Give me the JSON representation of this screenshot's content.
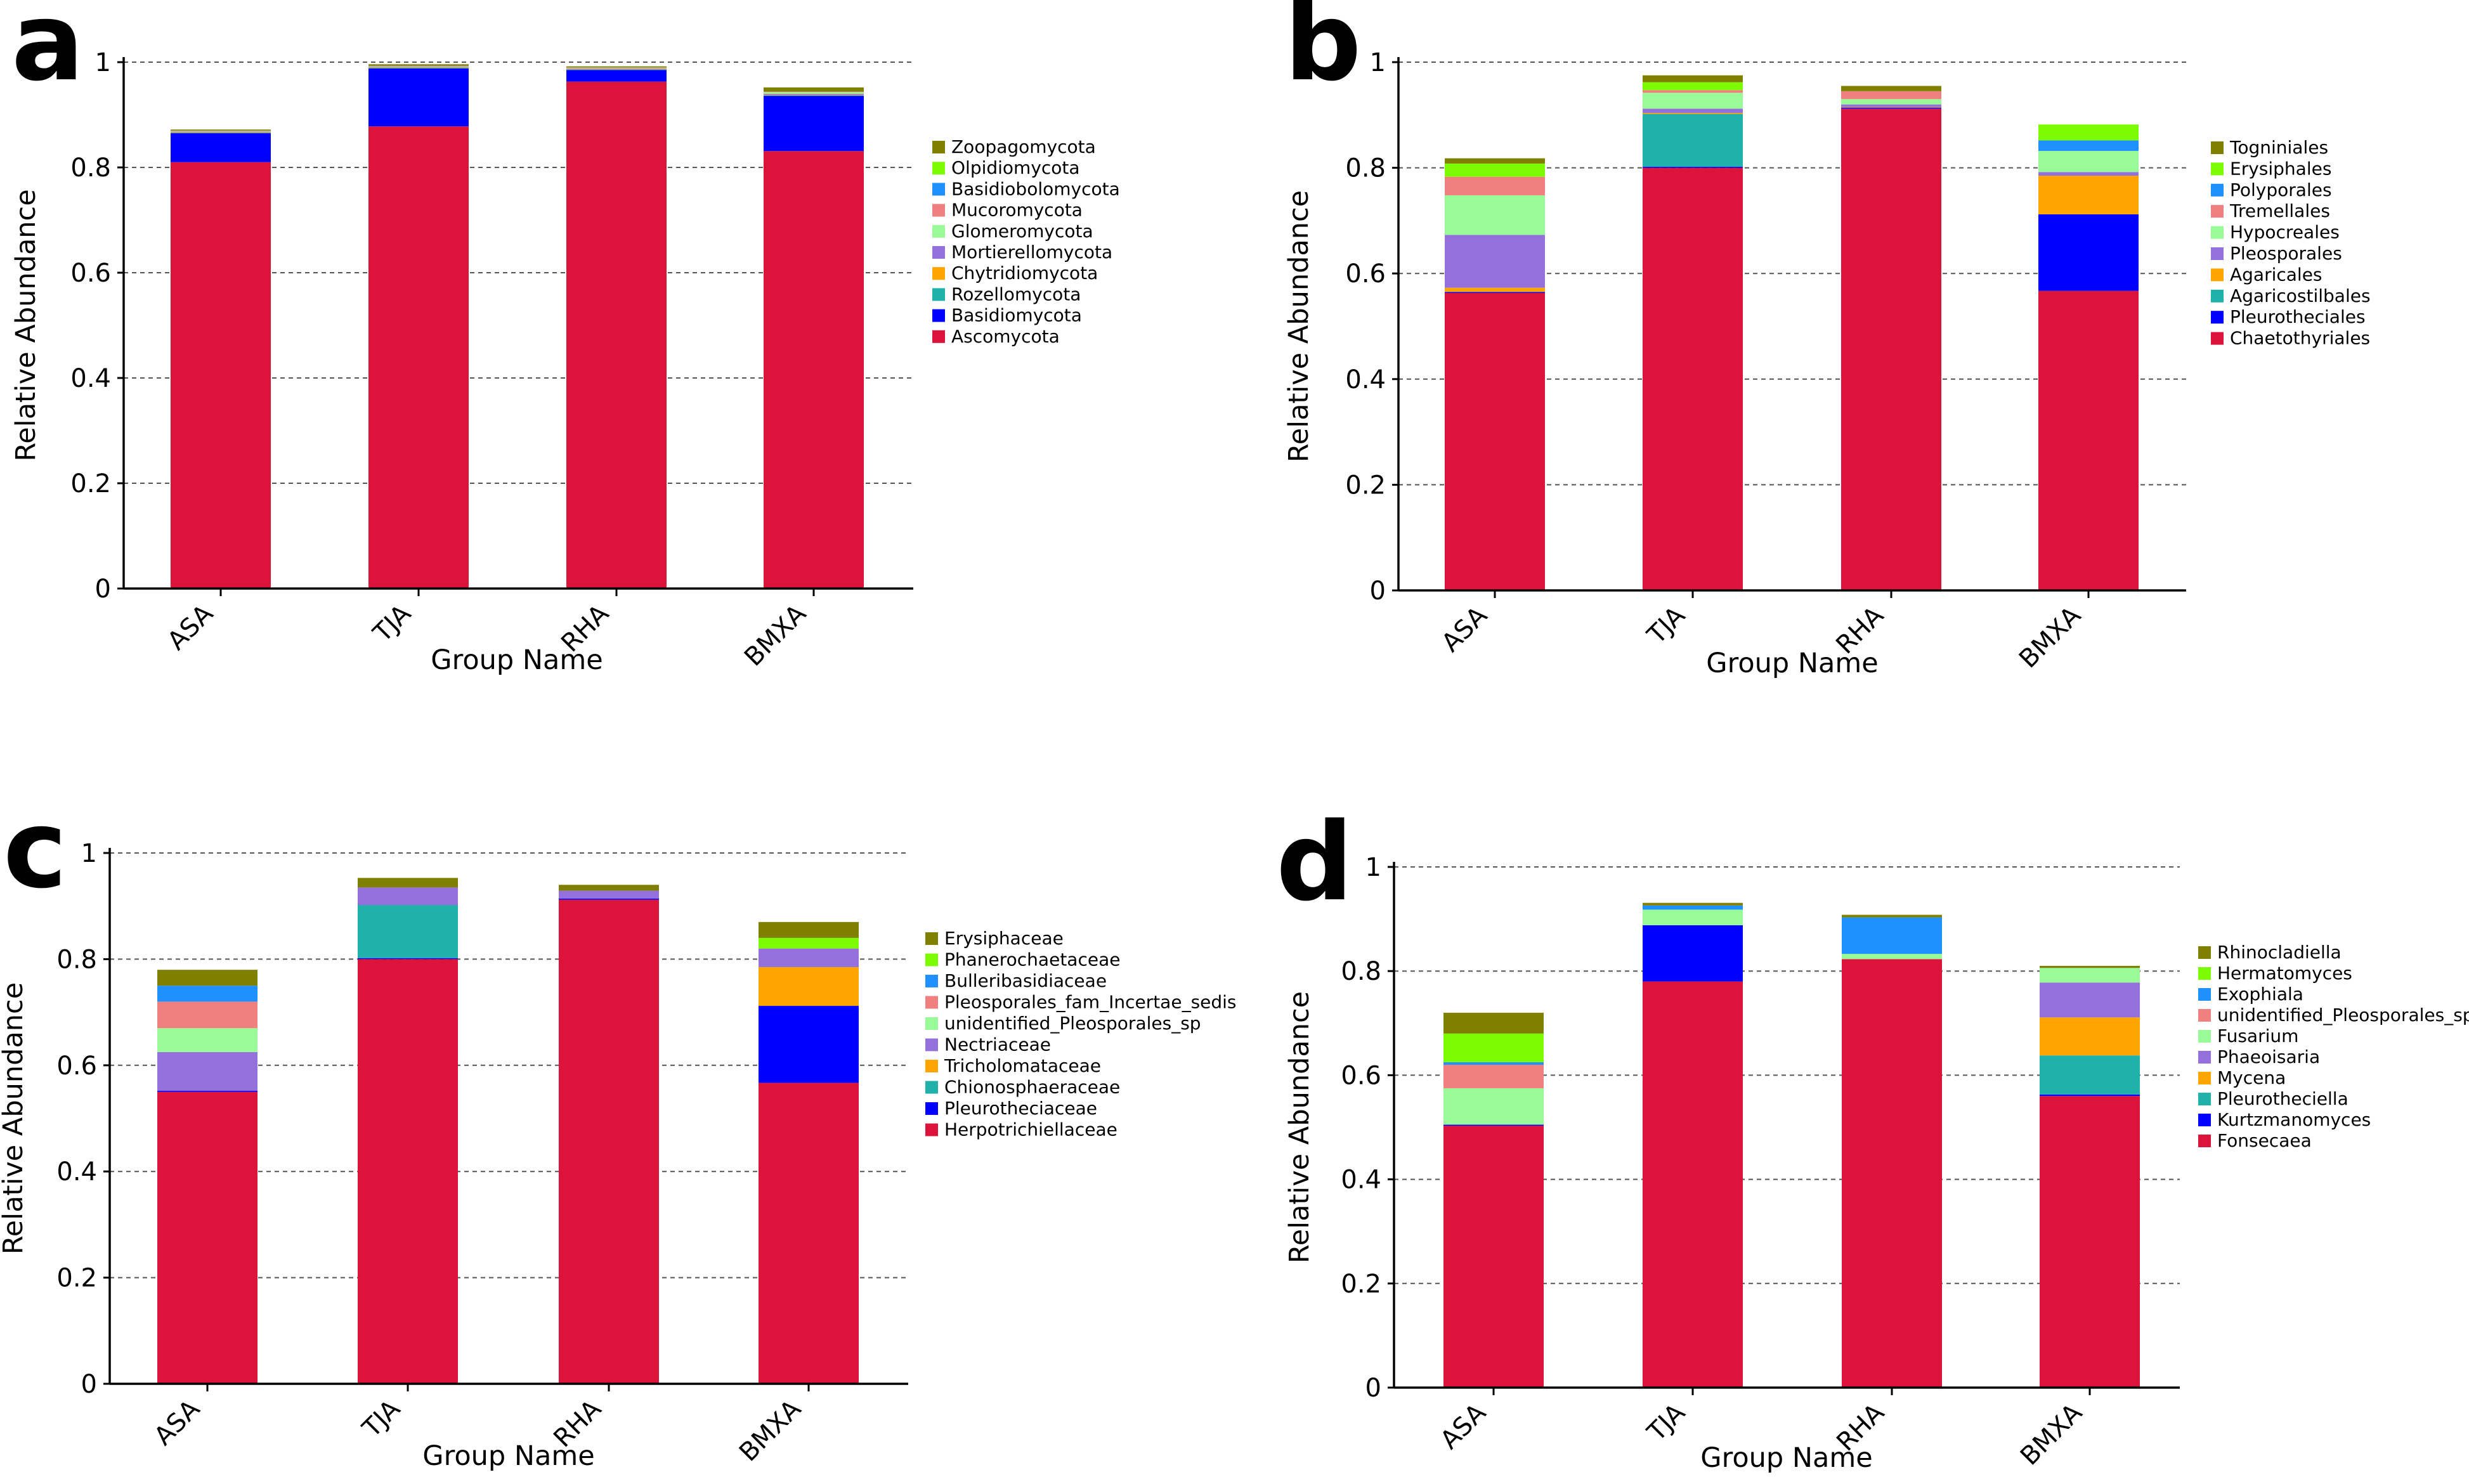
{
  "chart_data": [
    {
      "panel_label": "a",
      "type": "bar",
      "stacked": true,
      "xlabel": "Group Name",
      "ylabel": "Relative Abundance",
      "ylim": [
        0,
        1
      ],
      "yticks": [
        "0",
        "0.2",
        "0.4",
        "0.6",
        "0.8",
        "1"
      ],
      "grid": "y-dashed",
      "categories": [
        "ASA",
        "TJA",
        "RHA",
        "BMXA"
      ],
      "series": [
        {
          "name": "Ascomycota",
          "color": "#DC143C",
          "values": [
            0.81,
            0.878,
            0.963,
            0.831
          ]
        },
        {
          "name": "Basidiomycota",
          "color": "#0000FF",
          "values": [
            0.055,
            0.11,
            0.022,
            0.105
          ]
        },
        {
          "name": "Rozellomycota",
          "color": "#20B2AA",
          "values": [
            0.001,
            0.001,
            0.001,
            0.001
          ]
        },
        {
          "name": "Chytridiomycota",
          "color": "#FFA500",
          "values": [
            0.001,
            0.001,
            0.001,
            0.001
          ]
        },
        {
          "name": "Mortierellomycota",
          "color": "#9370DB",
          "values": [
            0.001,
            0.001,
            0.001,
            0.002
          ]
        },
        {
          "name": "Glomeromycota",
          "color": "#98FB98",
          "values": [
            0.001,
            0.001,
            0.001,
            0.003
          ]
        },
        {
          "name": "Mucoromycota",
          "color": "#F08080",
          "values": [
            0.001,
            0.001,
            0.001,
            0.001
          ]
        },
        {
          "name": "Basidiobolomycota",
          "color": "#1E90FF",
          "values": [
            0.0,
            0.0,
            0.0,
            0.0
          ]
        },
        {
          "name": "Olpidiomycota",
          "color": "#7CFC00",
          "values": [
            0.0,
            0.0,
            0.0,
            0.0
          ]
        },
        {
          "name": "Zoopagomycota",
          "color": "#808000",
          "values": [
            0.002,
            0.003,
            0.002,
            0.008
          ]
        }
      ]
    },
    {
      "panel_label": "b",
      "type": "bar",
      "stacked": true,
      "xlabel": "Group Name",
      "ylabel": "Relative Abundance",
      "ylim": [
        0,
        1
      ],
      "yticks": [
        "0",
        "0.2",
        "0.4",
        "0.6",
        "0.8",
        "1"
      ],
      "grid": "y-dashed",
      "categories": [
        "ASA",
        "TJA",
        "RHA",
        "BMXA"
      ],
      "series": [
        {
          "name": "Chaetothyriales",
          "color": "#DC143C",
          "values": [
            0.563,
            0.8,
            0.912,
            0.567
          ]
        },
        {
          "name": "Pleurotheciales",
          "color": "#0000FF",
          "values": [
            0.002,
            0.002,
            0.002,
            0.145
          ]
        },
        {
          "name": "Agaricostilbales",
          "color": "#20B2AA",
          "values": [
            0.0,
            0.1,
            0.0,
            0.0
          ]
        },
        {
          "name": "Agaricales",
          "color": "#FFA500",
          "values": [
            0.008,
            0.002,
            0.001,
            0.073
          ]
        },
        {
          "name": "Pleosporales",
          "color": "#9370DB",
          "values": [
            0.1,
            0.008,
            0.005,
            0.007
          ]
        },
        {
          "name": "Hypocreales",
          "color": "#98FB98",
          "values": [
            0.075,
            0.03,
            0.01,
            0.04
          ]
        },
        {
          "name": "Tremellales",
          "color": "#F08080",
          "values": [
            0.035,
            0.005,
            0.015,
            0.0
          ]
        },
        {
          "name": "Polyporales",
          "color": "#1E90FF",
          "values": [
            0.0,
            0.0,
            0.0,
            0.02
          ]
        },
        {
          "name": "Erysiphales",
          "color": "#7CFC00",
          "values": [
            0.025,
            0.015,
            0.0,
            0.03
          ]
        },
        {
          "name": "Togniniales",
          "color": "#808000",
          "values": [
            0.01,
            0.013,
            0.01,
            0.0
          ]
        }
      ]
    },
    {
      "panel_label": "c",
      "type": "bar",
      "stacked": true,
      "xlabel": "Group Name",
      "ylabel": "Relative Abundance",
      "ylim": [
        0,
        1
      ],
      "yticks": [
        "0",
        "0.2",
        "0.4",
        "0.6",
        "0.8",
        "1"
      ],
      "grid": "y-dashed",
      "categories": [
        "ASA",
        "TJA",
        "RHA",
        "BMXA"
      ],
      "series": [
        {
          "name": "Herpotrichiellaceae",
          "color": "#DC143C",
          "values": [
            0.55,
            0.8,
            0.912,
            0.567
          ]
        },
        {
          "name": "Pleurotheciaceae",
          "color": "#0000FF",
          "values": [
            0.002,
            0.002,
            0.002,
            0.145
          ]
        },
        {
          "name": "Chionosphaeraceae",
          "color": "#20B2AA",
          "values": [
            0.0,
            0.1,
            0.0,
            0.0
          ]
        },
        {
          "name": "Tricholomataceae",
          "color": "#FFA500",
          "values": [
            0.0,
            0.0,
            0.0,
            0.073
          ]
        },
        {
          "name": "Nectriaceae",
          "color": "#9370DB",
          "values": [
            0.073,
            0.033,
            0.015,
            0.035
          ]
        },
        {
          "name": "unidentified_Pleosporales_sp",
          "color": "#98FB98",
          "values": [
            0.045,
            0.0,
            0.0,
            0.0
          ]
        },
        {
          "name": "Pleosporales_fam_Incertae_sedis",
          "color": "#F08080",
          "values": [
            0.05,
            0.0,
            0.0,
            0.0
          ]
        },
        {
          "name": "Bulleribasidiaceae",
          "color": "#1E90FF",
          "values": [
            0.03,
            0.0,
            0.0,
            0.0
          ]
        },
        {
          "name": "Phanerochaetaceae",
          "color": "#7CFC00",
          "values": [
            0.0,
            0.0,
            0.0,
            0.02
          ]
        },
        {
          "name": "Erysiphaceae",
          "color": "#808000",
          "values": [
            0.03,
            0.018,
            0.011,
            0.03
          ]
        }
      ]
    },
    {
      "panel_label": "d",
      "type": "bar",
      "stacked": true,
      "xlabel": "Group Name",
      "ylabel": "Relative Abundance",
      "ylim": [
        0,
        1
      ],
      "yticks": [
        "0",
        "0.2",
        "0.4",
        "0.6",
        "0.8",
        "1"
      ],
      "grid": "y-dashed",
      "categories": [
        "ASA",
        "TJA",
        "RHA",
        "BMXA"
      ],
      "series": [
        {
          "name": "Fonsecaea",
          "color": "#DC143C",
          "values": [
            0.503,
            0.78,
            0.823,
            0.56
          ]
        },
        {
          "name": "Kurtzmanomyces",
          "color": "#0000FF",
          "values": [
            0.002,
            0.108,
            0.0,
            0.003
          ]
        },
        {
          "name": "Pleurotheciella",
          "color": "#20B2AA",
          "values": [
            0.0,
            0.0,
            0.0,
            0.075
          ]
        },
        {
          "name": "Mycena",
          "color": "#FFA500",
          "values": [
            0.0,
            0.0,
            0.0,
            0.073
          ]
        },
        {
          "name": "Phaeoisaria",
          "color": "#9370DB",
          "values": [
            0.0,
            0.0,
            0.0,
            0.067
          ]
        },
        {
          "name": "Fusarium",
          "color": "#98FB98",
          "values": [
            0.07,
            0.03,
            0.01,
            0.028
          ]
        },
        {
          "name": "unidentified_Pleosporales_sp",
          "color": "#F08080",
          "values": [
            0.045,
            0.0,
            0.0,
            0.0
          ]
        },
        {
          "name": "Exophiala",
          "color": "#1E90FF",
          "values": [
            0.005,
            0.008,
            0.07,
            0.0
          ]
        },
        {
          "name": "Hermatomyces",
          "color": "#7CFC00",
          "values": [
            0.055,
            0.0,
            0.0,
            0.0
          ]
        },
        {
          "name": "Rhinocladiella",
          "color": "#808000",
          "values": [
            0.04,
            0.005,
            0.005,
            0.004
          ]
        }
      ]
    }
  ]
}
